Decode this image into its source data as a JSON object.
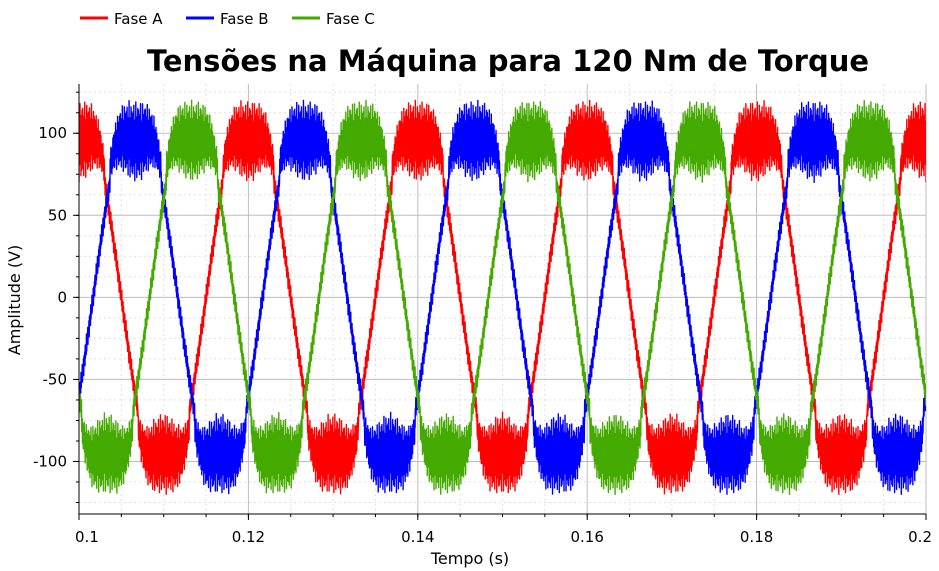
{
  "chart_data": {
    "type": "line",
    "title": "Tensões na Máquina para 120 Nm de Torque",
    "xlabel": "Tempo (s)",
    "ylabel": "Amplitude (V)",
    "xlim": [
      0.1,
      0.2
    ],
    "ylim": [
      -132,
      130
    ],
    "xticks": [
      0.1,
      0.12,
      0.14,
      0.16,
      0.18,
      0.2
    ],
    "xtick_labels": [
      "0.1",
      "0.12",
      "0.14",
      "0.16",
      "0.18",
      "0.2"
    ],
    "yticks": [
      100,
      50,
      0,
      -50,
      -100
    ],
    "ytick_labels": [
      "100",
      "50",
      "0",
      "-50",
      "-100"
    ],
    "grid": true,
    "legend_position": "top-left",
    "fundamental_frequency_hz": 50,
    "switching_band": {
      "outer_amplitude": 120,
      "inner_amplitude": 70
    },
    "series": [
      {
        "name": "Fase A",
        "color": "#ff0000",
        "phase_deg": 90,
        "peak": 120
      },
      {
        "name": "Fase B",
        "color": "#0000ff",
        "phase_deg": -30,
        "peak": 120
      },
      {
        "name": "Fase C",
        "color": "#44aa00",
        "phase_deg": 210,
        "peak": 120
      }
    ]
  }
}
